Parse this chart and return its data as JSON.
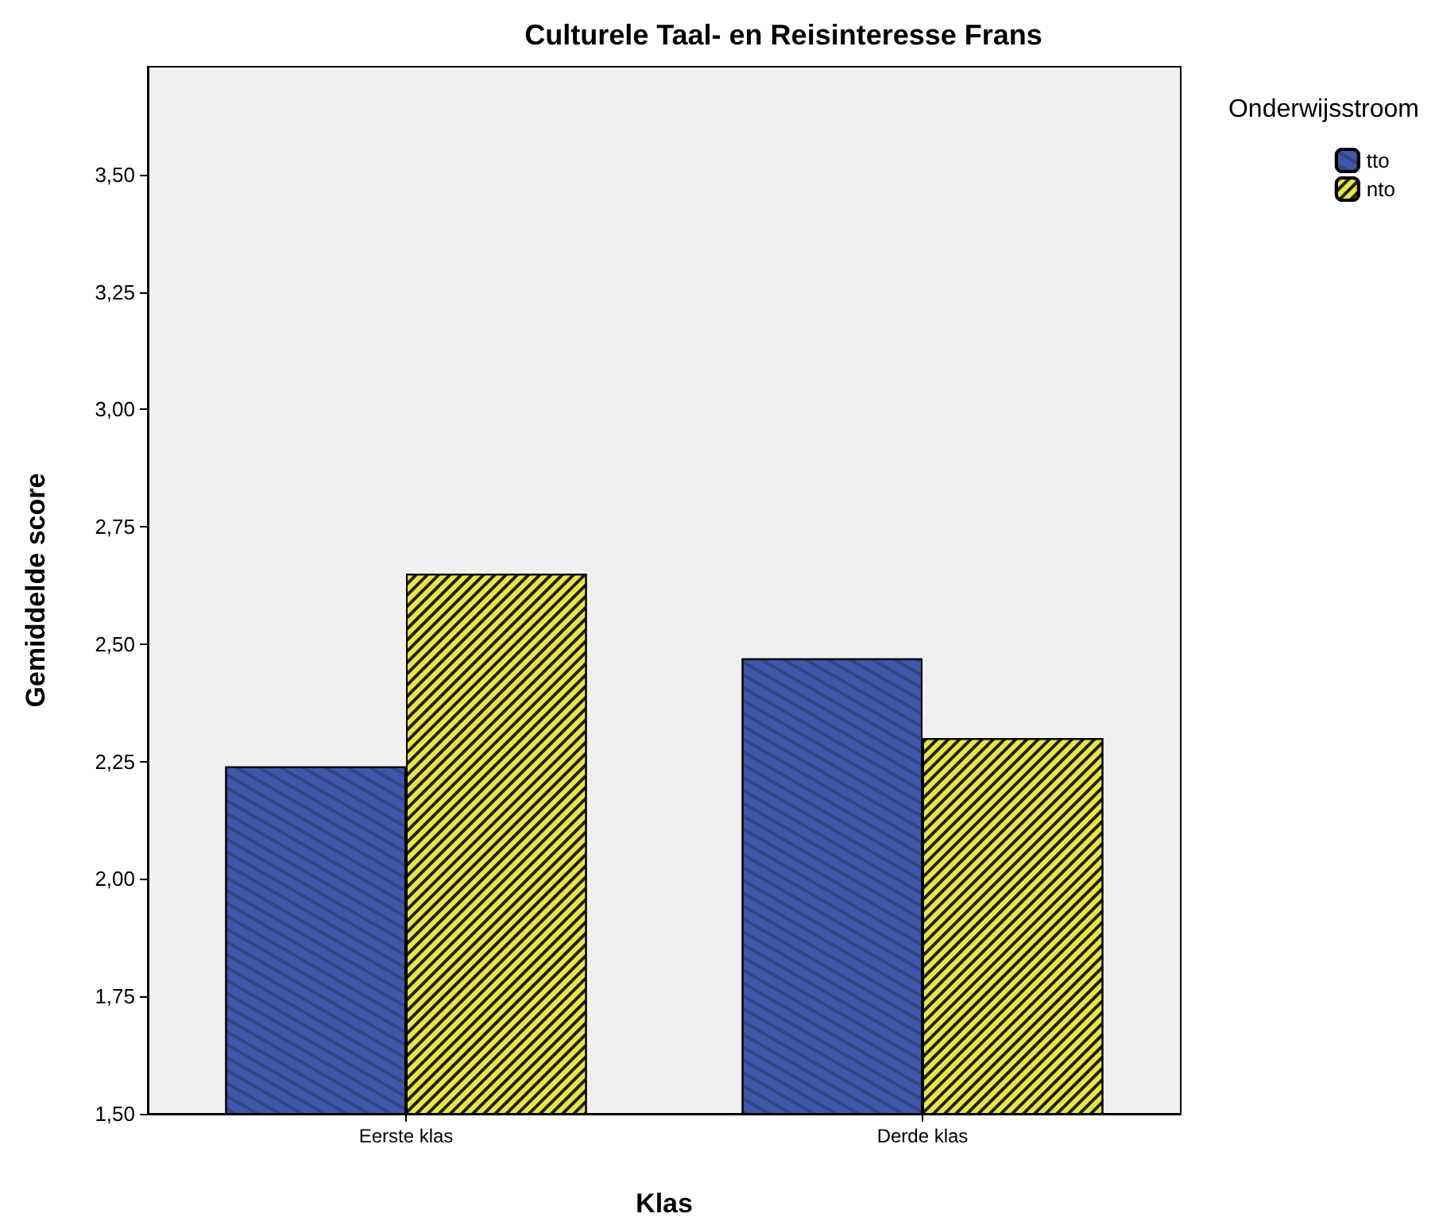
{
  "chart_data": {
    "type": "bar",
    "title": "Culturele Taal- en Reisinteresse Frans",
    "xlabel": "Klas",
    "ylabel": "Gemiddelde score",
    "legend_title": "Onderwijsstroom",
    "legend": "top right",
    "grid": false,
    "categories": [
      "Eerste klas",
      "Derde klas"
    ],
    "series": [
      {
        "name": "tto",
        "color": "#3e57a8",
        "values": [
          2.24,
          2.47
        ]
      },
      {
        "name": "nto",
        "color": "#e6e64c",
        "values": [
          2.65,
          2.3
        ]
      }
    ],
    "ylim": [
      1.5,
      3.73
    ],
    "yticks": [
      {
        "value": 1.5,
        "label": "1,50"
      },
      {
        "value": 1.75,
        "label": "1,75"
      },
      {
        "value": 2.0,
        "label": "2,00"
      },
      {
        "value": 2.25,
        "label": "2,25"
      },
      {
        "value": 2.5,
        "label": "2,50"
      },
      {
        "value": 2.75,
        "label": "2,75"
      },
      {
        "value": 3.0,
        "label": "3,00"
      },
      {
        "value": 3.25,
        "label": "3,25"
      },
      {
        "value": 3.5,
        "label": "3,50"
      }
    ]
  }
}
